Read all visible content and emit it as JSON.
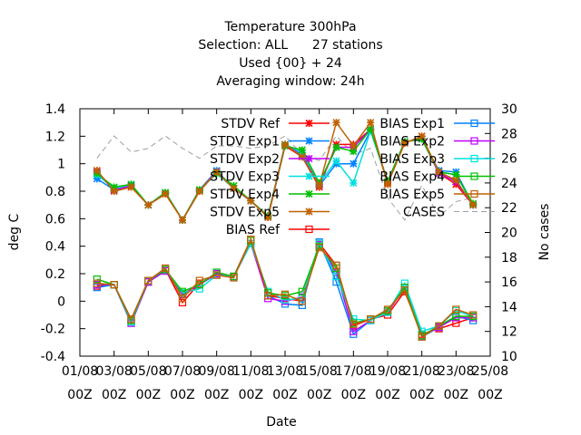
{
  "chart_data": {
    "type": "line",
    "title_lines": [
      "Temperature 300hPa",
      "Selection: ALL      27 stations",
      "Used {00} + 24",
      "Averaging window: 24h"
    ],
    "xlabel": "Date",
    "ylabel": "deg C",
    "y2label": "No cases",
    "ylim": [
      -0.4,
      1.4
    ],
    "y2lim": [
      10,
      30
    ],
    "yticks": [
      "-0.4",
      "-0.2",
      "0",
      "0.2",
      "0.4",
      "0.6",
      "0.8",
      "1",
      "1.2",
      "1.4"
    ],
    "y2ticks": [
      "10",
      "12",
      "14",
      "16",
      "18",
      "20",
      "22",
      "24",
      "26",
      "28",
      "30"
    ],
    "xticks": [
      {
        "top": "01/08",
        "bottom": "00Z"
      },
      {
        "top": "03/08",
        "bottom": "00Z"
      },
      {
        "top": "05/08",
        "bottom": "00Z"
      },
      {
        "top": "07/08",
        "bottom": "00Z"
      },
      {
        "top": "09/08",
        "bottom": "00Z"
      },
      {
        "top": "11/08",
        "bottom": "00Z"
      },
      {
        "top": "13/08",
        "bottom": "00Z"
      },
      {
        "top": "15/08",
        "bottom": "00Z"
      },
      {
        "top": "17/08",
        "bottom": "00Z"
      },
      {
        "top": "19/08",
        "bottom": "00Z"
      },
      {
        "top": "21/08",
        "bottom": "00Z"
      },
      {
        "top": "23/08",
        "bottom": "00Z"
      },
      {
        "top": "25/08",
        "bottom": "00Z"
      }
    ],
    "x": [
      1,
      2,
      3,
      4,
      5,
      6,
      7,
      8,
      9,
      10,
      11,
      12,
      13,
      14,
      15,
      16,
      17,
      18,
      19,
      20,
      21,
      22,
      23
    ],
    "series": [
      {
        "name": "STDV Ref",
        "kind": "stdv",
        "axis": "y",
        "color": "#ff0000",
        "marker": "x",
        "values": [
          0.95,
          0.8,
          0.83,
          0.7,
          0.78,
          0.59,
          0.8,
          0.94,
          0.82,
          0.73,
          0.61,
          1.13,
          1.05,
          0.83,
          1.14,
          1.14,
          1.25,
          0.86,
          1.15,
          1.2,
          0.93,
          0.85,
          0.7
        ]
      },
      {
        "name": "STDV Exp1",
        "kind": "stdv",
        "axis": "y",
        "color": "#0080ff",
        "marker": "x",
        "values": [
          0.89,
          0.81,
          0.84,
          0.7,
          0.79,
          0.59,
          0.81,
          0.95,
          0.82,
          0.73,
          0.62,
          1.14,
          1.06,
          0.84,
          1.0,
          1.0,
          1.24,
          0.87,
          1.16,
          1.18,
          0.95,
          0.94,
          0.7
        ]
      },
      {
        "name": "STDV Exp2",
        "kind": "stdv",
        "axis": "y",
        "color": "#c000ff",
        "marker": "x",
        "values": [
          0.94,
          0.81,
          0.84,
          0.7,
          0.79,
          0.59,
          0.81,
          0.94,
          0.82,
          0.73,
          0.62,
          1.13,
          1.08,
          0.85,
          1.12,
          1.12,
          1.25,
          0.87,
          1.16,
          1.18,
          0.93,
          0.87,
          0.7
        ]
      },
      {
        "name": "STDV Exp3",
        "kind": "stdv",
        "axis": "y",
        "color": "#00e0e0",
        "marker": "x",
        "values": [
          0.92,
          0.82,
          0.85,
          0.7,
          0.79,
          0.59,
          0.81,
          0.93,
          0.82,
          0.73,
          0.62,
          1.14,
          1.08,
          0.86,
          1.02,
          0.86,
          1.24,
          0.87,
          1.16,
          1.18,
          0.94,
          0.92,
          0.7
        ]
      },
      {
        "name": "STDV Exp4",
        "kind": "stdv",
        "axis": "y",
        "color": "#00c000",
        "marker": "x",
        "values": [
          0.93,
          0.83,
          0.85,
          0.7,
          0.79,
          0.59,
          0.81,
          0.93,
          0.84,
          0.73,
          0.62,
          1.13,
          1.1,
          0.86,
          1.12,
          1.09,
          1.25,
          0.87,
          1.16,
          1.18,
          0.94,
          0.92,
          0.71
        ]
      },
      {
        "name": "STDV Exp5",
        "kind": "stdv",
        "axis": "y",
        "color": "#c06000",
        "marker": "x",
        "values": [
          0.95,
          0.8,
          0.83,
          0.7,
          0.78,
          0.59,
          0.8,
          0.94,
          0.82,
          0.73,
          0.61,
          1.14,
          1.05,
          0.84,
          1.3,
          1.13,
          1.3,
          0.85,
          1.15,
          1.2,
          0.94,
          0.88,
          0.7
        ]
      },
      {
        "name": "BIAS Ref",
        "kind": "bias",
        "axis": "y",
        "color": "#ff0000",
        "marker": "square",
        "values": [
          0.11,
          0.12,
          -0.14,
          0.14,
          0.23,
          -0.01,
          0.13,
          0.19,
          0.18,
          0.45,
          0.04,
          0.02,
          0.0,
          0.42,
          0.26,
          -0.18,
          -0.13,
          -0.1,
          0.07,
          -0.24,
          -0.2,
          -0.16,
          -0.12
        ]
      },
      {
        "name": "BIAS Exp1",
        "kind": "bias",
        "axis": "y",
        "color": "#0080ff",
        "marker": "square",
        "values": [
          0.1,
          0.12,
          -0.16,
          0.14,
          0.22,
          0.05,
          0.12,
          0.2,
          0.18,
          0.42,
          0.04,
          -0.02,
          -0.03,
          0.43,
          0.14,
          -0.24,
          -0.14,
          -0.08,
          0.1,
          -0.26,
          -0.19,
          -0.11,
          -0.14
        ]
      },
      {
        "name": "BIAS Exp2",
        "kind": "bias",
        "axis": "y",
        "color": "#c000ff",
        "marker": "square",
        "values": [
          0.12,
          0.12,
          -0.16,
          0.14,
          0.22,
          0.05,
          0.12,
          0.2,
          0.18,
          0.42,
          0.02,
          0.0,
          0.03,
          0.41,
          0.21,
          -0.22,
          -0.14,
          -0.08,
          0.1,
          -0.25,
          -0.19,
          -0.12,
          -0.12
        ]
      },
      {
        "name": "BIAS Exp3",
        "kind": "bias",
        "axis": "y",
        "color": "#00e0e0",
        "marker": "square",
        "values": [
          0.13,
          0.12,
          -0.15,
          0.15,
          0.23,
          0.06,
          0.09,
          0.19,
          0.18,
          0.42,
          0.07,
          0.01,
          0.02,
          0.42,
          0.18,
          -0.13,
          -0.14,
          -0.08,
          0.13,
          -0.22,
          -0.18,
          -0.07,
          -0.11
        ]
      },
      {
        "name": "BIAS Exp4",
        "kind": "bias",
        "axis": "y",
        "color": "#00c000",
        "marker": "square",
        "values": [
          0.16,
          0.12,
          -0.14,
          0.15,
          0.23,
          0.07,
          0.12,
          0.21,
          0.18,
          0.44,
          0.06,
          0.04,
          0.07,
          0.4,
          0.24,
          -0.16,
          -0.13,
          -0.07,
          0.1,
          -0.25,
          -0.18,
          -0.11,
          -0.11
        ]
      },
      {
        "name": "BIAS Exp5",
        "kind": "bias",
        "axis": "y",
        "color": "#c06000",
        "marker": "square",
        "values": [
          0.13,
          0.12,
          -0.13,
          0.15,
          0.24,
          0.02,
          0.15,
          0.19,
          0.17,
          0.45,
          0.04,
          0.05,
          0.0,
          0.39,
          0.26,
          -0.17,
          -0.13,
          -0.06,
          0.08,
          -0.26,
          -0.18,
          -0.06,
          -0.1
        ]
      },
      {
        "name": "CASES",
        "kind": "cases",
        "axis": "y2",
        "color": "#a0a0a0",
        "marker": "none",
        "values": [
          26.0,
          27.8,
          26.5,
          26.8,
          27.8,
          26.8,
          26.0,
          27.0,
          27.0,
          26.8,
          27.0,
          27.8,
          26.3,
          25.8,
          27.8,
          26.3,
          26.8,
          22.8,
          21.0,
          23.8,
          21.3,
          22.5,
          22.8
        ]
      }
    ]
  }
}
